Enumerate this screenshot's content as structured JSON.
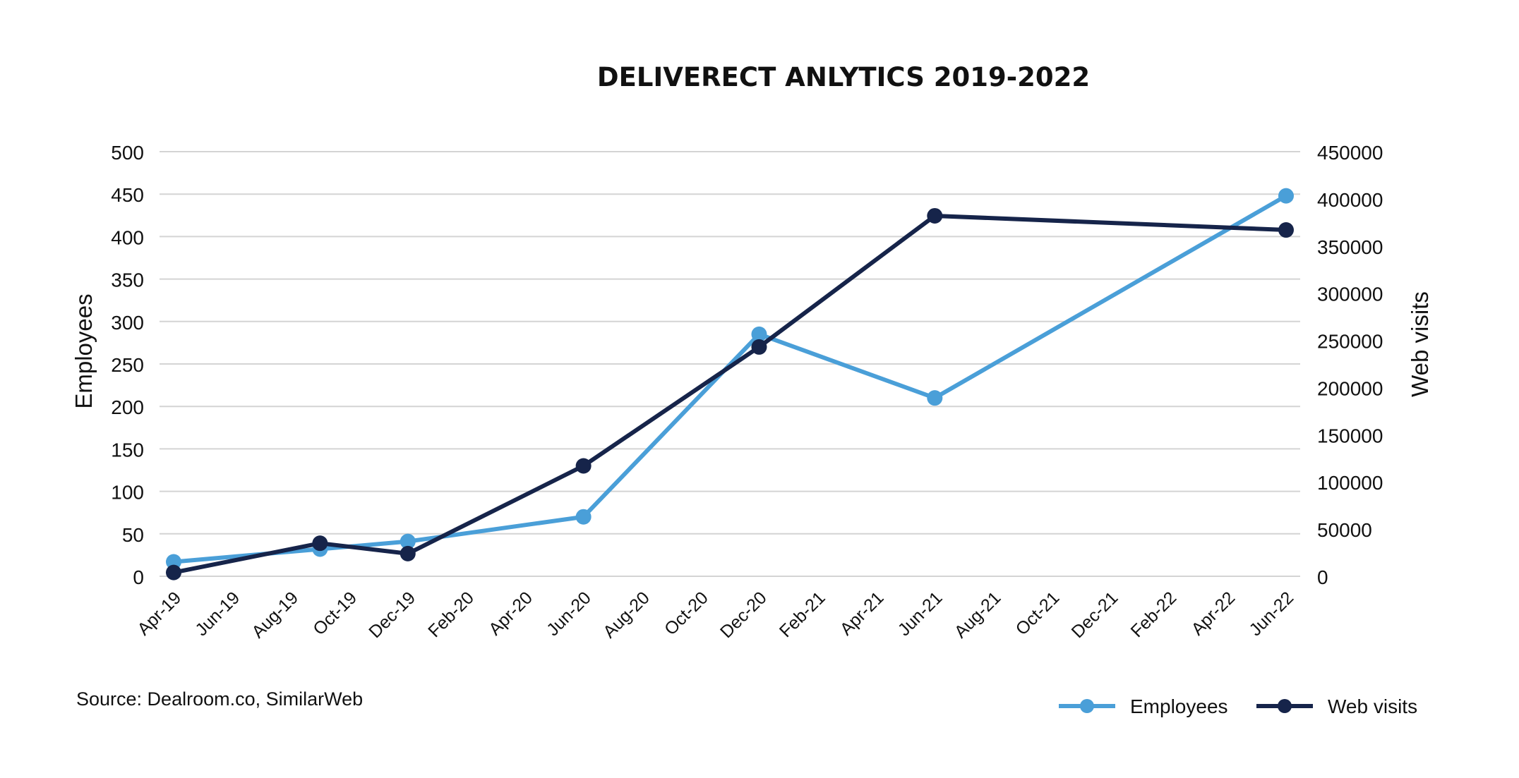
{
  "chart_data": {
    "type": "line",
    "title": "DELIVERECT ANLYTICS 2019-2022",
    "x_ticks": [
      "Apr-19",
      "Jun-19",
      "Aug-19",
      "Oct-19",
      "Dec-19",
      "Feb-20",
      "Apr-20",
      "Jun-20",
      "Aug-20",
      "Oct-20",
      "Dec-20",
      "Feb-21",
      "Apr-21",
      "Jun-21",
      "Aug-21",
      "Oct-21",
      "Dec-21",
      "Feb-22",
      "Apr-22",
      "Jun-22"
    ],
    "y_left": {
      "label": "Employees",
      "ylim": [
        0,
        500
      ],
      "ticks": [
        0,
        50,
        100,
        150,
        200,
        250,
        300,
        350,
        400,
        450,
        500
      ]
    },
    "y_right": {
      "label": "Web visits",
      "ylim": [
        0,
        450000
      ],
      "ticks": [
        0,
        50000,
        100000,
        150000,
        200000,
        250000,
        300000,
        350000,
        400000,
        450000
      ]
    },
    "grid": true,
    "legend_position": "bottom-right",
    "series": [
      {
        "name": "Employees",
        "axis": "left",
        "color": "#4a9fd8",
        "points": [
          {
            "x": "Apr-19",
            "y": 17
          },
          {
            "x": "Sep-19",
            "y": 32
          },
          {
            "x": "Dec-19",
            "y": 41
          },
          {
            "x": "Jun-20",
            "y": 70
          },
          {
            "x": "Dec-20",
            "y": 285
          },
          {
            "x": "Jun-21",
            "y": 210
          },
          {
            "x": "Jun-22",
            "y": 448
          }
        ]
      },
      {
        "name": "Web visits",
        "axis": "right",
        "color": "#16244a",
        "points": [
          {
            "x": "Apr-19",
            "y": 4000
          },
          {
            "x": "Sep-19",
            "y": 35000
          },
          {
            "x": "Dec-19",
            "y": 24000
          },
          {
            "x": "Jun-20",
            "y": 117000
          },
          {
            "x": "Dec-20",
            "y": 243000
          },
          {
            "x": "Jun-21",
            "y": 382000
          },
          {
            "x": "Jun-22",
            "y": 367000
          }
        ]
      }
    ]
  },
  "source": "Source: Dealroom.co, SimilarWeb"
}
